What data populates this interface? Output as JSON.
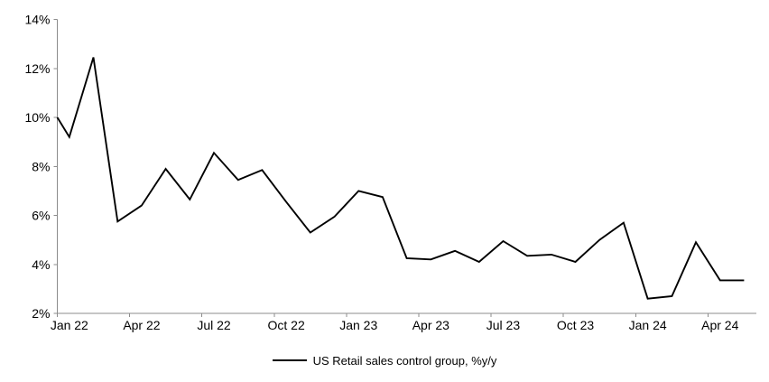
{
  "page": {
    "background_color": "#ffffff",
    "text_color": "#000000"
  },
  "chart_data": {
    "type": "line",
    "title": "",
    "xlabel": "",
    "ylabel": "",
    "legend_label": "US Retail sales control group, %y/y",
    "legend_position": "bottom-center",
    "grid": false,
    "line_color": "#000000",
    "axis_color": "#8c8c8c",
    "tick_label_color": "#000000",
    "ylim": [
      2,
      14
    ],
    "y_tick_labels": [
      "2%",
      "4%",
      "6%",
      "8%",
      "10%",
      "12%",
      "14%"
    ],
    "y_tick_values": [
      2,
      4,
      6,
      8,
      10,
      12,
      14
    ],
    "x_tick_labels": [
      "Jan 22",
      "Apr 22",
      "Jul 22",
      "Oct 22",
      "Jan 23",
      "Apr 23",
      "Jul 23",
      "Oct 23",
      "Jan 24",
      "Apr 24"
    ],
    "categories": [
      "Jan 22",
      "Feb 22",
      "Mar 22",
      "Apr 22",
      "May 22",
      "Jun 22",
      "Jul 22",
      "Aug 22",
      "Sep 22",
      "Oct 22",
      "Nov 22",
      "Dec 22",
      "Jan 23",
      "Feb 23",
      "Mar 23",
      "Apr 23",
      "May 23",
      "Jun 23",
      "Jul 23",
      "Aug 23",
      "Sep 23",
      "Oct 23",
      "Nov 23",
      "Dec 23",
      "Jan 24",
      "Feb 24",
      "Mar 24",
      "Apr 24",
      "May 24"
    ],
    "values": [
      9.2,
      12.45,
      5.75,
      6.4,
      7.9,
      6.65,
      8.55,
      7.45,
      7.85,
      6.55,
      5.3,
      5.95,
      7.0,
      6.75,
      4.25,
      4.2,
      4.55,
      4.1,
      4.95,
      4.35,
      4.4,
      4.1,
      5.0,
      5.7,
      2.6,
      2.7,
      4.9,
      3.35,
      3.35
    ],
    "left_edge_entry_value": 10.0
  }
}
